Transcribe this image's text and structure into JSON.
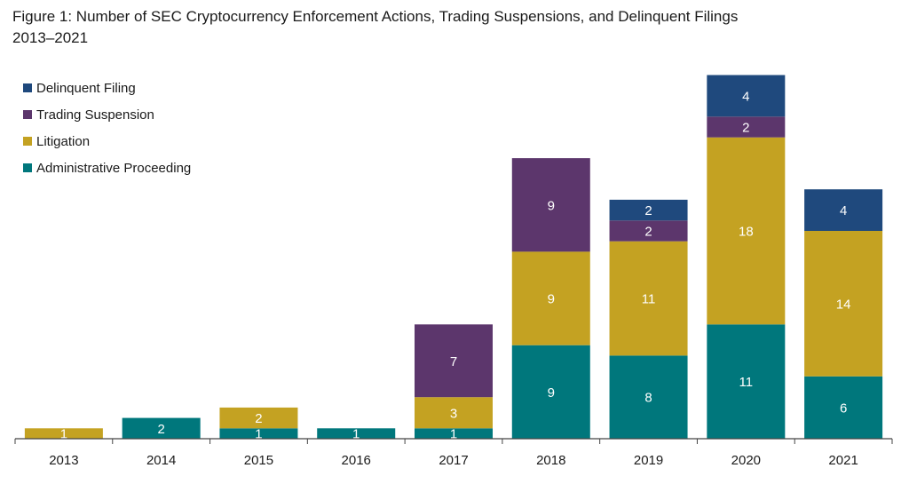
{
  "chart_data": {
    "type": "bar",
    "stacked": true,
    "title": "Figure 1: Number of SEC Cryptocurrency Enforcement Actions, Trading Suspensions, and Delinquent Filings",
    "subtitle": "2013–2021",
    "xlabel": "",
    "ylabel": "",
    "ylim": [
      0,
      35
    ],
    "grid": false,
    "legend_position": "top-left",
    "categories": [
      "2013",
      "2014",
      "2015",
      "2016",
      "2017",
      "2018",
      "2019",
      "2020",
      "2021"
    ],
    "series": [
      {
        "name": "Administrative Proceeding",
        "color": "#00777c",
        "values": [
          0,
          2,
          1,
          1,
          1,
          9,
          8,
          11,
          6
        ]
      },
      {
        "name": "Litigation",
        "color": "#c4a222",
        "values": [
          1,
          0,
          2,
          0,
          3,
          9,
          11,
          18,
          14
        ]
      },
      {
        "name": "Trading Suspension",
        "color": "#5c366c",
        "values": [
          0,
          0,
          0,
          0,
          7,
          9,
          2,
          2,
          0
        ]
      },
      {
        "name": "Delinquent Filing",
        "color": "#1f497d",
        "values": [
          0,
          0,
          0,
          0,
          0,
          0,
          2,
          4,
          4
        ]
      }
    ],
    "legend_order": [
      "Delinquent Filing",
      "Trading Suspension",
      "Litigation",
      "Administrative Proceeding"
    ]
  }
}
